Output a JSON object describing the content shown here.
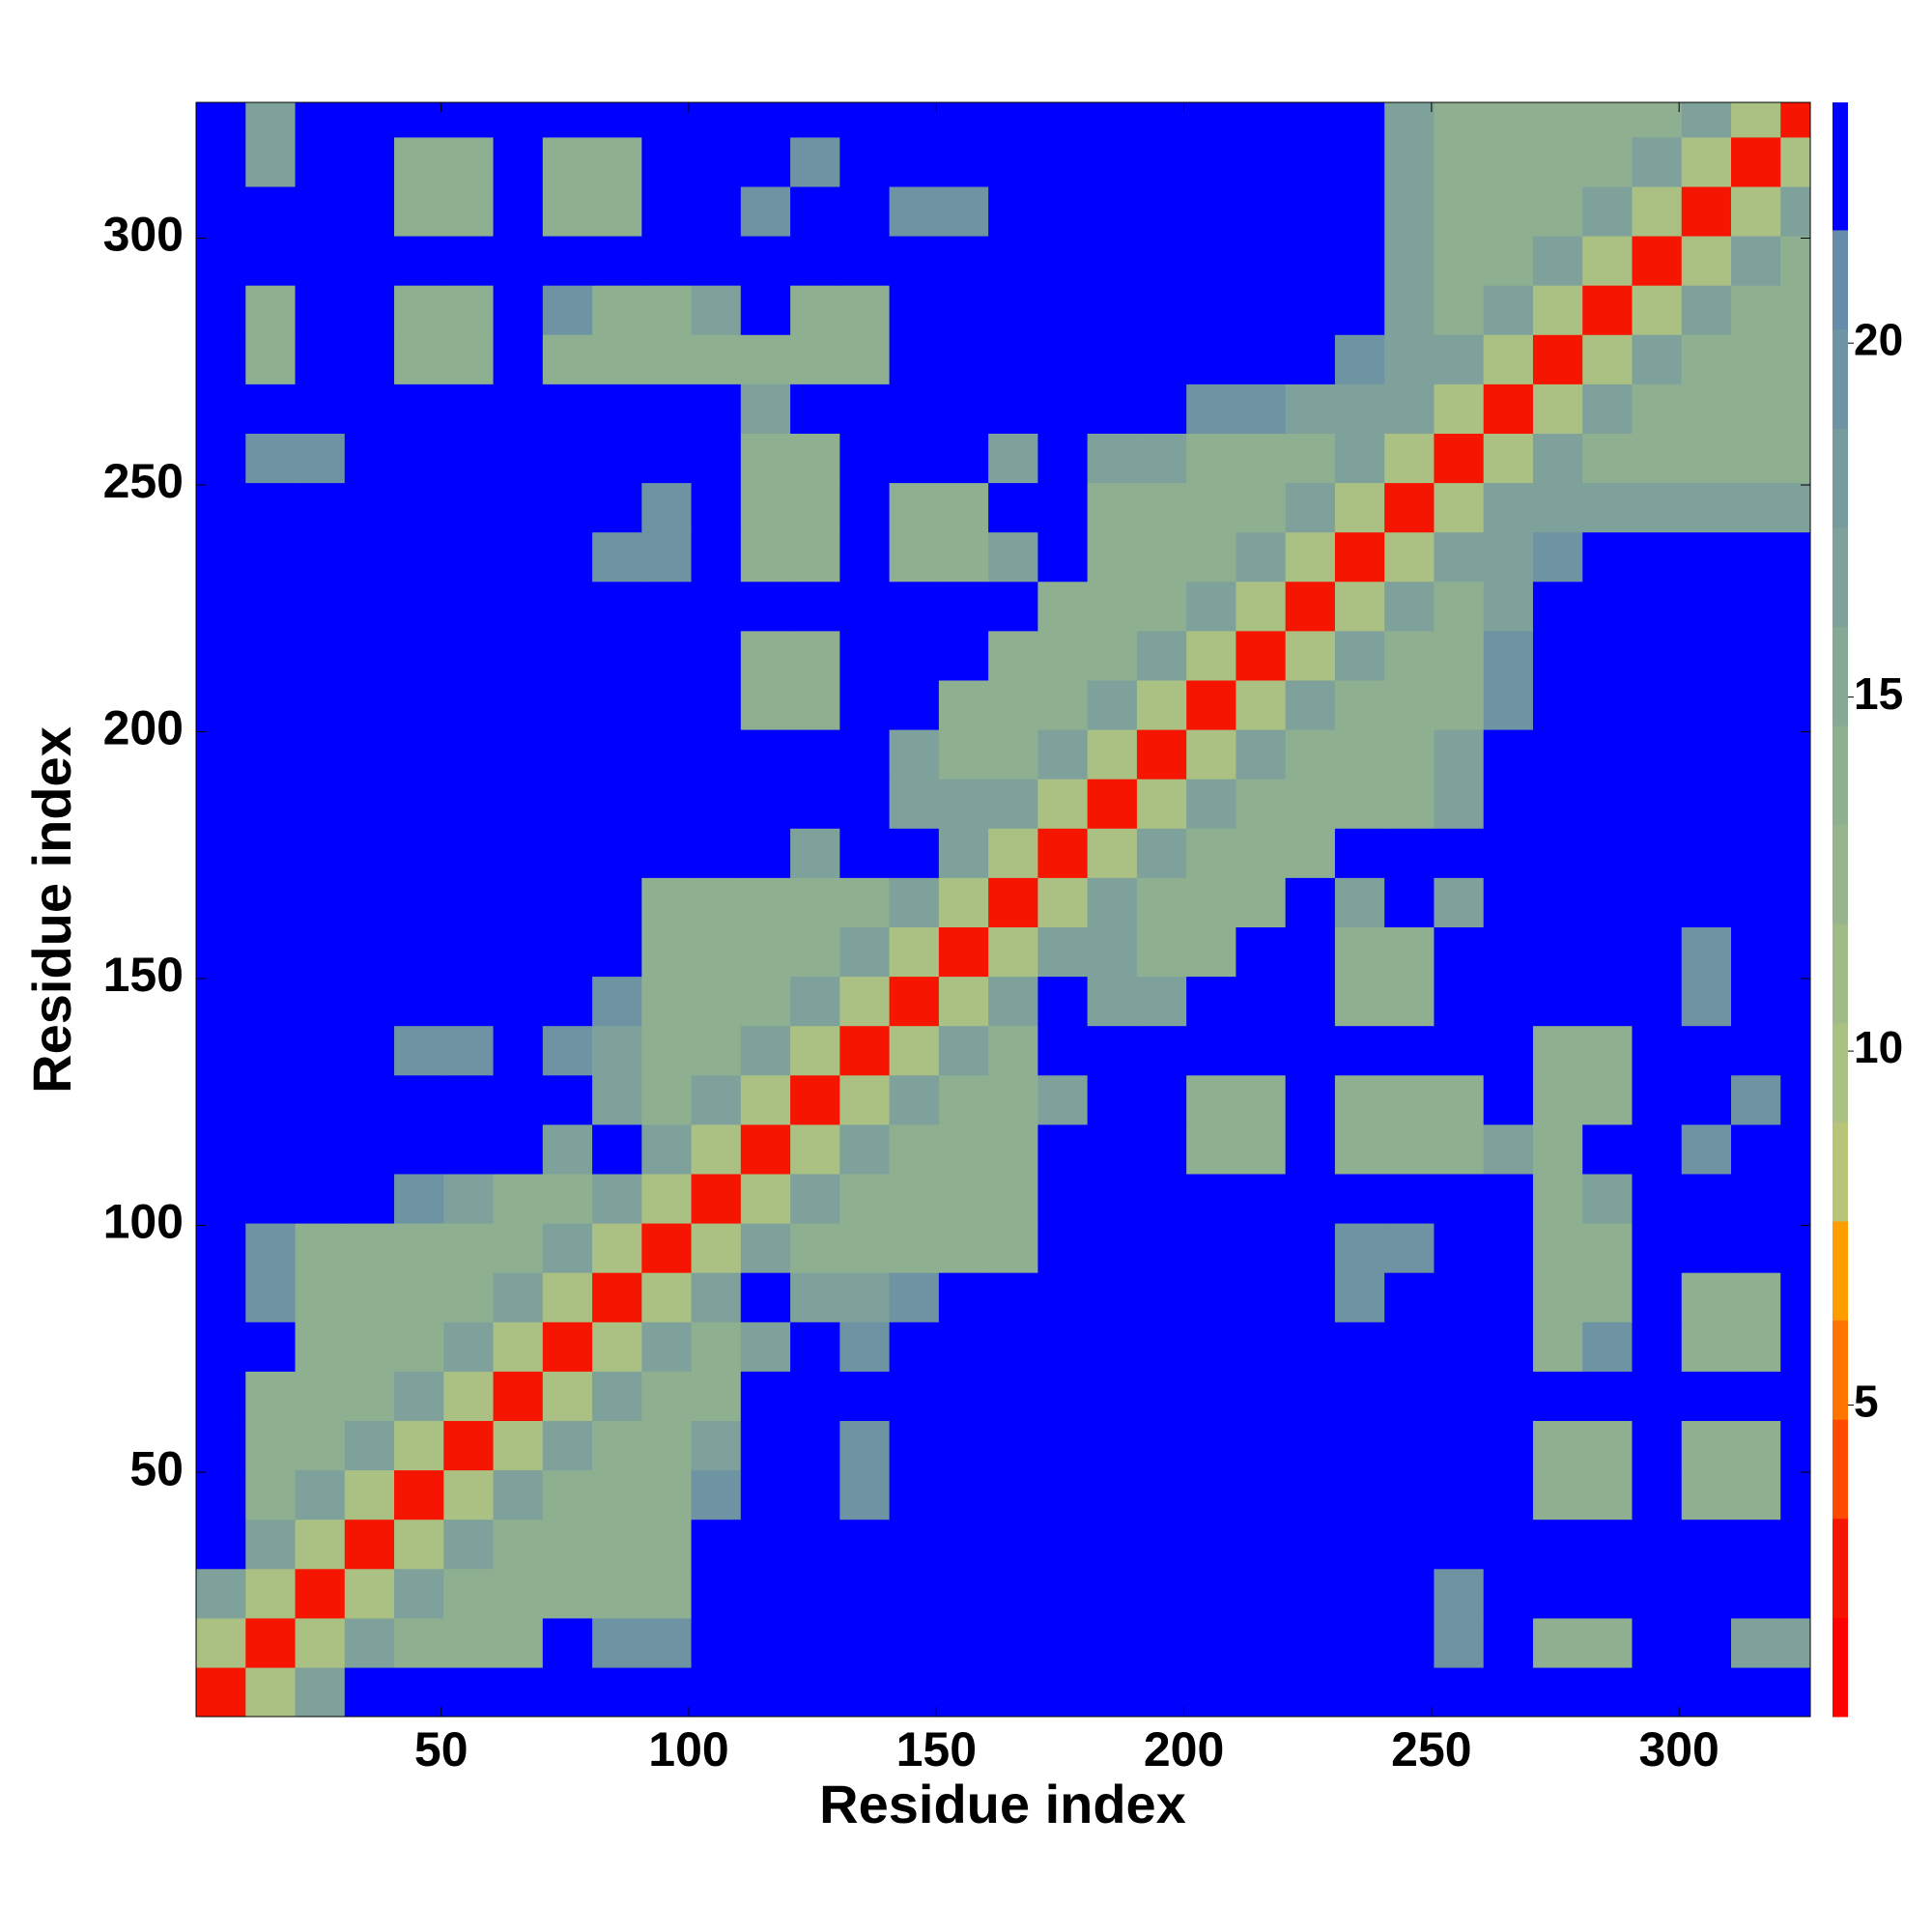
{
  "chart_data": {
    "type": "heatmap",
    "x_label": "Residue index",
    "y_label": "Residue index",
    "x": [
      5.5,
      15.5,
      25.5,
      35.5,
      45.5,
      55.5,
      65.5,
      75.5,
      85.5,
      95.5,
      105.5,
      115.5,
      125.5,
      135.5,
      145.5,
      155.5,
      165.5,
      175.5,
      185.5,
      195.5,
      205.5,
      215.5,
      225.5,
      235.5,
      245.5,
      255.5,
      265.5,
      275.5,
      285.5,
      295.5,
      305.5,
      315.5,
      325.5
    ],
    "y": [
      5.5,
      15.5,
      25.5,
      35.5,
      45.5,
      55.5,
      65.5,
      75.5,
      85.5,
      95.5,
      105.5,
      115.5,
      125.5,
      135.5,
      145.5,
      155.5,
      165.5,
      175.5,
      185.5,
      195.5,
      205.5,
      215.5,
      225.5,
      235.5,
      245.5,
      255.5,
      265.5,
      275.5,
      285.5,
      295.5,
      305.5,
      315.5,
      325.5
    ],
    "z": [
      [
        3,
        10,
        16,
        24,
        24,
        24,
        24,
        24,
        24,
        24,
        24,
        24,
        24,
        24,
        24,
        24,
        24,
        24,
        24,
        24,
        24,
        24,
        24,
        24,
        24,
        24,
        24,
        24,
        24,
        24,
        24,
        24,
        24
      ],
      [
        10,
        3,
        10,
        16,
        14,
        14,
        14,
        24,
        19,
        19,
        24,
        24,
        24,
        24,
        24,
        24,
        24,
        24,
        24,
        24,
        24,
        24,
        24,
        24,
        24,
        19,
        24,
        14,
        14,
        24,
        24,
        16,
        16
      ],
      [
        16,
        10,
        3,
        10,
        16,
        14,
        14,
        14,
        14,
        14,
        24,
        24,
        24,
        24,
        24,
        24,
        24,
        24,
        24,
        24,
        24,
        24,
        24,
        24,
        24,
        19,
        24,
        24,
        24,
        24,
        24,
        24,
        24
      ],
      [
        24,
        16,
        10,
        3,
        10,
        16,
        14,
        14,
        14,
        14,
        24,
        24,
        24,
        24,
        24,
        24,
        24,
        24,
        24,
        24,
        24,
        24,
        24,
        24,
        24,
        24,
        24,
        24,
        24,
        24,
        24,
        24,
        24
      ],
      [
        24,
        14,
        16,
        10,
        3,
        10,
        16,
        14,
        14,
        14,
        19,
        24,
        24,
        19,
        24,
        24,
        24,
        24,
        24,
        24,
        24,
        24,
        24,
        24,
        24,
        24,
        24,
        14,
        14,
        24,
        14,
        14,
        24
      ],
      [
        24,
        14,
        14,
        16,
        10,
        3,
        10,
        16,
        14,
        14,
        16,
        24,
        24,
        19,
        24,
        24,
        24,
        24,
        24,
        24,
        24,
        24,
        24,
        24,
        24,
        24,
        24,
        14,
        14,
        24,
        14,
        14,
        24
      ],
      [
        24,
        14,
        14,
        14,
        16,
        10,
        3,
        10,
        16,
        14,
        14,
        24,
        24,
        24,
        24,
        24,
        24,
        24,
        24,
        24,
        24,
        24,
        24,
        24,
        24,
        24,
        24,
        24,
        24,
        24,
        24,
        24,
        24
      ],
      [
        24,
        24,
        14,
        14,
        14,
        16,
        10,
        3,
        10,
        16,
        14,
        16,
        24,
        19,
        24,
        24,
        24,
        24,
        24,
        24,
        24,
        24,
        24,
        24,
        24,
        24,
        24,
        14,
        19,
        24,
        14,
        14,
        24
      ],
      [
        24,
        19,
        14,
        14,
        14,
        14,
        16,
        10,
        3,
        10,
        16,
        24,
        16,
        16,
        19,
        24,
        24,
        24,
        24,
        24,
        24,
        24,
        24,
        19,
        24,
        24,
        24,
        14,
        14,
        24,
        14,
        14,
        24
      ],
      [
        24,
        19,
        14,
        14,
        14,
        14,
        14,
        16,
        10,
        3,
        10,
        16,
        14,
        14,
        14,
        14,
        14,
        24,
        24,
        24,
        24,
        24,
        24,
        19,
        19,
        24,
        24,
        14,
        14,
        24,
        24,
        24,
        24
      ],
      [
        24,
        24,
        24,
        24,
        19,
        16,
        14,
        14,
        16,
        10,
        3,
        10,
        16,
        14,
        14,
        14,
        14,
        24,
        24,
        24,
        24,
        24,
        24,
        24,
        24,
        24,
        24,
        14,
        16,
        24,
        24,
        24,
        24
      ],
      [
        24,
        24,
        24,
        24,
        24,
        24,
        24,
        16,
        24,
        16,
        10,
        3,
        10,
        16,
        14,
        14,
        14,
        24,
        24,
        24,
        14,
        14,
        24,
        14,
        14,
        14,
        16,
        14,
        24,
        24,
        19,
        24,
        24
      ],
      [
        24,
        24,
        24,
        24,
        24,
        24,
        24,
        24,
        16,
        14,
        16,
        10,
        3,
        10,
        16,
        14,
        14,
        16,
        24,
        24,
        14,
        14,
        24,
        14,
        14,
        14,
        24,
        14,
        14,
        24,
        24,
        19,
        24
      ],
      [
        24,
        24,
        24,
        24,
        19,
        19,
        24,
        19,
        16,
        14,
        14,
        16,
        10,
        3,
        10,
        16,
        14,
        24,
        24,
        24,
        24,
        24,
        24,
        24,
        24,
        24,
        24,
        14,
        14,
        24,
        24,
        24,
        24
      ],
      [
        24,
        24,
        24,
        24,
        24,
        24,
        24,
        24,
        19,
        14,
        14,
        14,
        16,
        10,
        3,
        10,
        16,
        24,
        16,
        16,
        24,
        24,
        24,
        14,
        14,
        24,
        24,
        24,
        24,
        24,
        19,
        24,
        24
      ],
      [
        24,
        24,
        24,
        24,
        24,
        24,
        24,
        24,
        24,
        14,
        14,
        14,
        14,
        16,
        10,
        3,
        10,
        16,
        16,
        14,
        14,
        24,
        24,
        14,
        14,
        24,
        24,
        24,
        24,
        24,
        19,
        24,
        24
      ],
      [
        24,
        24,
        24,
        24,
        24,
        24,
        24,
        24,
        24,
        14,
        14,
        14,
        14,
        14,
        16,
        10,
        3,
        10,
        16,
        14,
        14,
        14,
        24,
        16,
        24,
        16,
        24,
        24,
        24,
        24,
        24,
        24,
        24
      ],
      [
        24,
        24,
        24,
        24,
        24,
        24,
        24,
        24,
        24,
        24,
        24,
        24,
        16,
        24,
        24,
        16,
        10,
        3,
        10,
        16,
        14,
        14,
        14,
        24,
        24,
        24,
        24,
        24,
        24,
        24,
        24,
        24,
        24
      ],
      [
        24,
        24,
        24,
        24,
        24,
        24,
        24,
        24,
        24,
        24,
        24,
        24,
        24,
        24,
        16,
        16,
        16,
        10,
        3,
        10,
        16,
        14,
        14,
        14,
        14,
        16,
        24,
        24,
        24,
        24,
        24,
        24,
        24
      ],
      [
        24,
        24,
        24,
        24,
        24,
        24,
        24,
        24,
        24,
        24,
        24,
        24,
        24,
        24,
        16,
        14,
        14,
        16,
        10,
        3,
        10,
        16,
        14,
        14,
        14,
        16,
        24,
        24,
        24,
        24,
        24,
        24,
        24
      ],
      [
        24,
        24,
        24,
        24,
        24,
        24,
        24,
        24,
        24,
        24,
        24,
        14,
        14,
        24,
        24,
        14,
        14,
        14,
        16,
        10,
        3,
        10,
        16,
        14,
        14,
        14,
        19,
        24,
        24,
        24,
        24,
        24,
        24
      ],
      [
        24,
        24,
        24,
        24,
        24,
        24,
        24,
        24,
        24,
        24,
        24,
        14,
        14,
        24,
        24,
        24,
        14,
        14,
        14,
        16,
        10,
        3,
        10,
        16,
        14,
        14,
        19,
        24,
        24,
        24,
        24,
        24,
        24
      ],
      [
        24,
        24,
        24,
        24,
        24,
        24,
        24,
        24,
        24,
        24,
        24,
        24,
        24,
        24,
        24,
        24,
        24,
        14,
        14,
        14,
        16,
        10,
        3,
        10,
        16,
        14,
        16,
        24,
        24,
        24,
        24,
        24,
        24
      ],
      [
        24,
        24,
        24,
        24,
        24,
        24,
        24,
        24,
        19,
        19,
        24,
        14,
        14,
        24,
        14,
        14,
        16,
        24,
        14,
        14,
        14,
        16,
        10,
        3,
        10,
        16,
        16,
        19,
        24,
        24,
        24,
        24,
        24
      ],
      [
        24,
        24,
        24,
        24,
        24,
        24,
        24,
        24,
        24,
        19,
        24,
        14,
        14,
        24,
        14,
        14,
        24,
        24,
        14,
        14,
        14,
        14,
        16,
        10,
        3,
        10,
        16,
        16,
        16,
        16,
        16,
        16,
        16
      ],
      [
        24,
        19,
        19,
        24,
        24,
        24,
        24,
        24,
        24,
        24,
        24,
        14,
        14,
        24,
        24,
        24,
        16,
        24,
        16,
        16,
        14,
        14,
        14,
        16,
        10,
        3,
        10,
        16,
        14,
        14,
        14,
        14,
        14
      ],
      [
        24,
        24,
        24,
        24,
        24,
        24,
        24,
        24,
        24,
        24,
        24,
        16,
        24,
        24,
        24,
        24,
        24,
        24,
        24,
        24,
        19,
        19,
        16,
        16,
        16,
        10,
        3,
        10,
        16,
        14,
        14,
        14,
        14
      ],
      [
        24,
        14,
        24,
        24,
        14,
        14,
        24,
        14,
        14,
        14,
        14,
        14,
        14,
        14,
        24,
        24,
        24,
        24,
        24,
        24,
        24,
        24,
        24,
        19,
        16,
        16,
        10,
        3,
        10,
        16,
        14,
        14,
        14
      ],
      [
        24,
        14,
        24,
        24,
        14,
        14,
        24,
        19,
        14,
        14,
        16,
        24,
        14,
        14,
        24,
        24,
        24,
        24,
        24,
        24,
        24,
        24,
        24,
        24,
        16,
        14,
        16,
        10,
        3,
        10,
        16,
        14,
        14
      ],
      [
        24,
        24,
        24,
        24,
        24,
        24,
        24,
        24,
        24,
        24,
        24,
        24,
        24,
        24,
        24,
        24,
        24,
        24,
        24,
        24,
        24,
        24,
        24,
        24,
        16,
        14,
        14,
        16,
        10,
        3,
        10,
        16,
        14
      ],
      [
        24,
        24,
        24,
        24,
        14,
        14,
        24,
        14,
        14,
        24,
        24,
        19,
        24,
        24,
        19,
        19,
        24,
        24,
        24,
        24,
        24,
        24,
        24,
        24,
        16,
        14,
        14,
        14,
        16,
        10,
        3,
        10,
        16
      ],
      [
        24,
        16,
        24,
        24,
        14,
        14,
        24,
        14,
        14,
        24,
        24,
        24,
        19,
        24,
        24,
        24,
        24,
        24,
        24,
        24,
        24,
        24,
        24,
        24,
        16,
        14,
        14,
        14,
        14,
        16,
        10,
        3,
        10
      ],
      [
        24,
        16,
        24,
        24,
        24,
        24,
        24,
        24,
        24,
        24,
        24,
        24,
        24,
        24,
        24,
        24,
        24,
        24,
        24,
        24,
        24,
        24,
        24,
        24,
        16,
        14,
        14,
        14,
        14,
        14,
        16,
        10,
        3
      ]
    ],
    "xlim": [
      0.5,
      326.5
    ],
    "ylim": [
      0.5,
      327.5
    ],
    "xticks": [
      50,
      100,
      150,
      200,
      250,
      300
    ],
    "yticks": [
      50,
      100,
      150,
      200,
      250,
      300
    ],
    "colorbar": {
      "levels": [
        0.6,
        2,
        3.4,
        4.8,
        6.2,
        7.6,
        9,
        10.4,
        11.8,
        13.2,
        14.6,
        16,
        17.4,
        18.8,
        20.2,
        21.6,
        23.4
      ],
      "colors": [
        "#ff0000",
        "#f61500",
        "#ff4a00",
        "#ff7400",
        "#ff9c00",
        "#b8c47a",
        "#abc083",
        "#a0bb88",
        "#96b58d",
        "#8eb091",
        "#86a996",
        "#7ea29b",
        "#769b9f",
        "#6e94a4",
        "#668ca9",
        "#0000ff"
      ],
      "ticks": [
        5,
        10,
        15,
        20
      ]
    }
  }
}
